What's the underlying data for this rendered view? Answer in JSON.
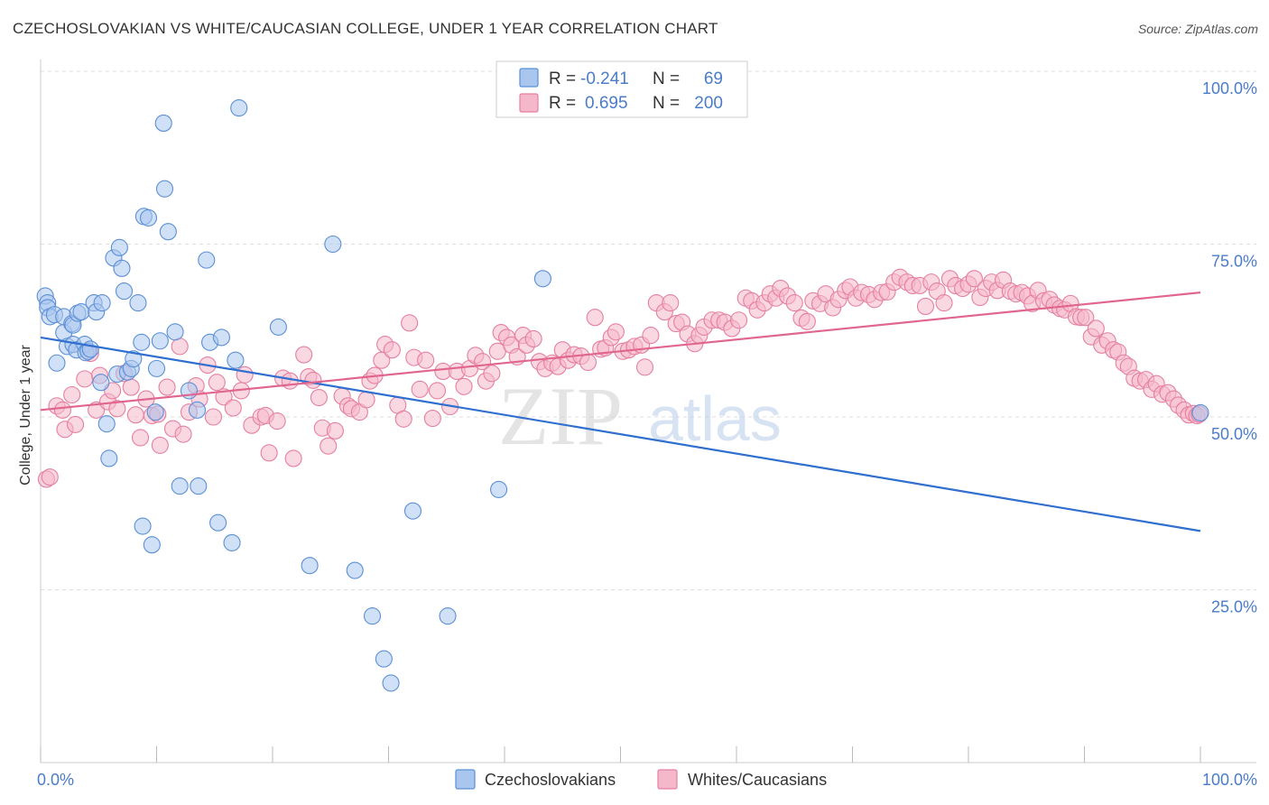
{
  "title": "CZECHOSLOVAKIAN VS WHITE/CAUCASIAN COLLEGE, UNDER 1 YEAR CORRELATION CHART",
  "source": "Source: ZipAtlas.com",
  "watermark": {
    "zip": "ZIP",
    "atlas": "atlas"
  },
  "colors": {
    "blue_fill": "#a9c6ee",
    "blue_stroke": "#5b8fd6",
    "blue_line": "#2f6fcf",
    "pink_fill": "#f5b8cb",
    "pink_stroke": "#e57fa0",
    "pink_line": "#e06690",
    "tick_text": "#4a7cc9",
    "grid": "#dddddd"
  },
  "legend": {
    "rows": [
      {
        "r_label": "R = ",
        "r_value": "-0.241",
        "n_label": "N = ",
        "n_value": "69"
      },
      {
        "r_label": "R = ",
        "r_value": "0.695",
        "n_label": "N = ",
        "n_value": "200"
      }
    ]
  },
  "bottom_legend": [
    "Czechoslovakians",
    "Whites/Caucasians"
  ],
  "chart_data": {
    "type": "scatter",
    "xlabel": "",
    "ylabel": "College, Under 1 year",
    "xlim": [
      0,
      100
    ],
    "ylim": [
      0,
      100
    ],
    "x_tick_labels": [
      "0.0%",
      "100.0%"
    ],
    "y_tick_labels": [
      {
        "value": 100,
        "label": "100.0%"
      },
      {
        "value": 75,
        "label": "75.0%"
      },
      {
        "value": 50,
        "label": "50.0%"
      },
      {
        "value": 25,
        "label": "25.0%"
      }
    ],
    "grid": true,
    "series": [
      {
        "name": "Czechoslovakians",
        "color": "blue",
        "trend": {
          "x": [
            0,
            100
          ],
          "y": [
            61.5,
            33.5
          ]
        },
        "points": [
          [
            0.4,
            67.5
          ],
          [
            0.6,
            66.5
          ],
          [
            0.6,
            65.8
          ],
          [
            0.8,
            64.5
          ],
          [
            1.2,
            64.8
          ],
          [
            1.4,
            57.8
          ],
          [
            2.0,
            62.2
          ],
          [
            2.0,
            64.5
          ],
          [
            2.3,
            60.2
          ],
          [
            2.7,
            63.5
          ],
          [
            2.8,
            63.3
          ],
          [
            2.8,
            60.5
          ],
          [
            3.1,
            59.7
          ],
          [
            3.2,
            65.0
          ],
          [
            3.5,
            65.2
          ],
          [
            3.8,
            60.5
          ],
          [
            3.9,
            59.3
          ],
          [
            4.1,
            59.5
          ],
          [
            4.3,
            59.8
          ],
          [
            4.6,
            66.5
          ],
          [
            4.8,
            65.2
          ],
          [
            5.2,
            55.0
          ],
          [
            5.3,
            66.5
          ],
          [
            5.7,
            49.0
          ],
          [
            5.9,
            44.0
          ],
          [
            6.3,
            73.0
          ],
          [
            6.6,
            56.2
          ],
          [
            6.8,
            74.5
          ],
          [
            7.0,
            71.5
          ],
          [
            7.2,
            68.2
          ],
          [
            7.5,
            56.5
          ],
          [
            7.8,
            57.0
          ],
          [
            8.0,
            58.4
          ],
          [
            8.4,
            66.5
          ],
          [
            8.7,
            60.8
          ],
          [
            8.8,
            34.2
          ],
          [
            8.9,
            79.0
          ],
          [
            9.3,
            78.8
          ],
          [
            9.6,
            31.5
          ],
          [
            9.9,
            50.7
          ],
          [
            10.0,
            57.0
          ],
          [
            10.3,
            61.0
          ],
          [
            10.6,
            92.5
          ],
          [
            10.7,
            83.0
          ],
          [
            11.0,
            76.8
          ],
          [
            11.6,
            62.3
          ],
          [
            12.0,
            40.0
          ],
          [
            12.8,
            53.8
          ],
          [
            13.5,
            51.0
          ],
          [
            13.6,
            40.0
          ],
          [
            14.3,
            72.7
          ],
          [
            14.6,
            60.8
          ],
          [
            15.3,
            34.7
          ],
          [
            15.6,
            61.5
          ],
          [
            16.5,
            31.8
          ],
          [
            16.8,
            58.2
          ],
          [
            17.1,
            94.7
          ],
          [
            20.5,
            63.0
          ],
          [
            23.2,
            28.5
          ],
          [
            25.2,
            75.0
          ],
          [
            27.1,
            27.8
          ],
          [
            28.6,
            21.2
          ],
          [
            29.6,
            15.0
          ],
          [
            30.2,
            11.5
          ],
          [
            32.1,
            36.4
          ],
          [
            35.1,
            21.2
          ],
          [
            39.5,
            39.5
          ],
          [
            43.3,
            70.0
          ],
          [
            100.0,
            50.6
          ]
        ]
      },
      {
        "name": "Whites/Caucasians",
        "color": "pink",
        "trend": {
          "x": [
            0,
            100
          ],
          "y": [
            51.0,
            68.0
          ]
        },
        "points": [
          [
            0.5,
            41.0
          ],
          [
            0.8,
            41.3
          ],
          [
            1.4,
            51.6
          ],
          [
            1.9,
            51.0
          ],
          [
            2.1,
            48.2
          ],
          [
            2.7,
            53.2
          ],
          [
            3.0,
            48.9
          ],
          [
            3.8,
            55.5
          ],
          [
            4.3,
            59.2
          ],
          [
            4.8,
            51.0
          ],
          [
            5.1,
            56.0
          ],
          [
            5.8,
            52.2
          ],
          [
            6.2,
            53.8
          ],
          [
            6.6,
            51.2
          ],
          [
            7.2,
            56.3
          ],
          [
            7.8,
            54.3
          ],
          [
            8.2,
            50.3
          ],
          [
            8.6,
            47.0
          ],
          [
            9.1,
            52.6
          ],
          [
            9.6,
            50.2
          ],
          [
            10.1,
            50.4
          ],
          [
            10.3,
            45.9
          ],
          [
            10.9,
            54.3
          ],
          [
            11.4,
            48.3
          ],
          [
            12.0,
            60.2
          ],
          [
            12.3,
            47.5
          ],
          [
            12.8,
            50.7
          ],
          [
            13.4,
            54.5
          ],
          [
            13.7,
            52.6
          ],
          [
            14.4,
            57.5
          ],
          [
            14.9,
            50.0
          ],
          [
            15.2,
            55.0
          ],
          [
            15.8,
            52.9
          ],
          [
            16.6,
            51.3
          ],
          [
            17.3,
            53.8
          ],
          [
            17.6,
            56.1
          ],
          [
            18.2,
            48.8
          ],
          [
            19.0,
            50.0
          ],
          [
            19.4,
            50.2
          ],
          [
            19.7,
            44.8
          ],
          [
            20.4,
            49.4
          ],
          [
            20.9,
            55.6
          ],
          [
            21.5,
            55.2
          ],
          [
            21.8,
            44.0
          ],
          [
            22.7,
            59.0
          ],
          [
            23.1,
            55.8
          ],
          [
            23.5,
            55.3
          ],
          [
            24.0,
            52.8
          ],
          [
            24.3,
            48.4
          ],
          [
            24.8,
            45.8
          ],
          [
            25.4,
            48.0
          ],
          [
            26.0,
            53.0
          ],
          [
            26.5,
            51.6
          ],
          [
            26.8,
            51.2
          ],
          [
            27.5,
            50.7
          ],
          [
            28.1,
            52.5
          ],
          [
            28.4,
            55.2
          ],
          [
            28.8,
            56.0
          ],
          [
            29.4,
            58.2
          ],
          [
            29.7,
            60.5
          ],
          [
            30.3,
            59.7
          ],
          [
            30.8,
            51.7
          ],
          [
            31.3,
            49.7
          ],
          [
            31.8,
            63.6
          ],
          [
            32.2,
            58.6
          ],
          [
            32.7,
            54.0
          ],
          [
            33.2,
            58.2
          ],
          [
            33.8,
            49.8
          ],
          [
            34.2,
            53.8
          ],
          [
            34.7,
            56.6
          ],
          [
            35.3,
            51.5
          ],
          [
            35.9,
            56.6
          ],
          [
            36.5,
            54.4
          ],
          [
            37.0,
            57.0
          ],
          [
            37.5,
            58.9
          ],
          [
            38.1,
            58.0
          ],
          [
            38.4,
            55.2
          ],
          [
            38.9,
            56.3
          ],
          [
            39.4,
            59.5
          ],
          [
            39.7,
            62.2
          ],
          [
            40.2,
            61.5
          ],
          [
            40.6,
            60.4
          ],
          [
            41.1,
            58.7
          ],
          [
            41.6,
            61.8
          ],
          [
            41.9,
            60.4
          ],
          [
            42.5,
            61.3
          ],
          [
            43.0,
            58.0
          ],
          [
            43.5,
            57.0
          ],
          [
            44.1,
            57.8
          ],
          [
            44.6,
            57.3
          ],
          [
            45.0,
            59.7
          ],
          [
            45.5,
            58.2
          ],
          [
            46.0,
            59.0
          ],
          [
            46.6,
            58.8
          ],
          [
            47.2,
            57.9
          ],
          [
            47.8,
            64.4
          ],
          [
            48.3,
            59.8
          ],
          [
            48.7,
            60.0
          ],
          [
            49.2,
            61.5
          ],
          [
            49.6,
            62.3
          ],
          [
            50.2,
            59.5
          ],
          [
            50.7,
            59.7
          ],
          [
            51.2,
            60.2
          ],
          [
            51.8,
            60.4
          ],
          [
            52.1,
            57.2
          ],
          [
            52.6,
            61.8
          ],
          [
            53.1,
            66.5
          ],
          [
            53.8,
            65.2
          ],
          [
            54.3,
            66.5
          ],
          [
            54.8,
            63.5
          ],
          [
            55.3,
            63.7
          ],
          [
            55.8,
            62.0
          ],
          [
            56.4,
            60.6
          ],
          [
            56.8,
            61.8
          ],
          [
            57.2,
            63.0
          ],
          [
            57.9,
            64.0
          ],
          [
            58.5,
            64.0
          ],
          [
            59.0,
            63.7
          ],
          [
            59.6,
            62.8
          ],
          [
            60.2,
            64.0
          ],
          [
            60.8,
            67.2
          ],
          [
            61.3,
            66.8
          ],
          [
            61.8,
            65.5
          ],
          [
            62.4,
            66.5
          ],
          [
            62.9,
            67.8
          ],
          [
            63.4,
            67.2
          ],
          [
            63.8,
            68.6
          ],
          [
            64.4,
            67.5
          ],
          [
            65.0,
            66.5
          ],
          [
            65.6,
            64.3
          ],
          [
            66.1,
            63.8
          ],
          [
            66.6,
            66.8
          ],
          [
            67.2,
            66.4
          ],
          [
            67.7,
            67.8
          ],
          [
            68.3,
            65.8
          ],
          [
            68.8,
            67.0
          ],
          [
            69.4,
            68.3
          ],
          [
            69.8,
            68.8
          ],
          [
            70.3,
            67.2
          ],
          [
            70.8,
            68.0
          ],
          [
            71.4,
            67.7
          ],
          [
            71.9,
            67.0
          ],
          [
            72.5,
            68.0
          ],
          [
            73.0,
            68.1
          ],
          [
            73.6,
            69.5
          ],
          [
            74.1,
            70.2
          ],
          [
            74.7,
            69.5
          ],
          [
            75.2,
            69.0
          ],
          [
            75.8,
            69.0
          ],
          [
            76.3,
            66.0
          ],
          [
            76.8,
            69.5
          ],
          [
            77.3,
            68.2
          ],
          [
            77.9,
            66.5
          ],
          [
            78.4,
            70.0
          ],
          [
            78.9,
            69.0
          ],
          [
            79.5,
            68.6
          ],
          [
            80.0,
            69.2
          ],
          [
            80.5,
            70.0
          ],
          [
            81.0,
            67.3
          ],
          [
            81.5,
            68.6
          ],
          [
            82.0,
            69.5
          ],
          [
            82.5,
            68.3
          ],
          [
            83.0,
            69.8
          ],
          [
            83.6,
            68.2
          ],
          [
            84.1,
            67.8
          ],
          [
            84.6,
            68.0
          ],
          [
            85.1,
            67.5
          ],
          [
            85.5,
            66.4
          ],
          [
            86.0,
            68.3
          ],
          [
            86.5,
            66.8
          ],
          [
            87.0,
            67.0
          ],
          [
            87.4,
            66.2
          ],
          [
            87.9,
            65.7
          ],
          [
            88.3,
            65.5
          ],
          [
            88.8,
            66.4
          ],
          [
            89.3,
            64.5
          ],
          [
            89.7,
            64.4
          ],
          [
            90.1,
            64.4
          ],
          [
            90.6,
            61.6
          ],
          [
            91.0,
            62.8
          ],
          [
            91.5,
            60.4
          ],
          [
            92.0,
            61.0
          ],
          [
            92.5,
            59.7
          ],
          [
            92.9,
            59.4
          ],
          [
            93.4,
            57.8
          ],
          [
            93.8,
            57.3
          ],
          [
            94.3,
            55.6
          ],
          [
            94.8,
            55.2
          ],
          [
            95.3,
            55.4
          ],
          [
            95.8,
            54.0
          ],
          [
            96.2,
            54.8
          ],
          [
            96.7,
            53.3
          ],
          [
            97.2,
            53.5
          ],
          [
            97.7,
            52.6
          ],
          [
            98.1,
            51.7
          ],
          [
            98.6,
            51.0
          ],
          [
            99.0,
            50.3
          ],
          [
            99.4,
            50.5
          ],
          [
            99.7,
            50.2
          ],
          [
            99.9,
            50.4
          ]
        ]
      }
    ]
  }
}
